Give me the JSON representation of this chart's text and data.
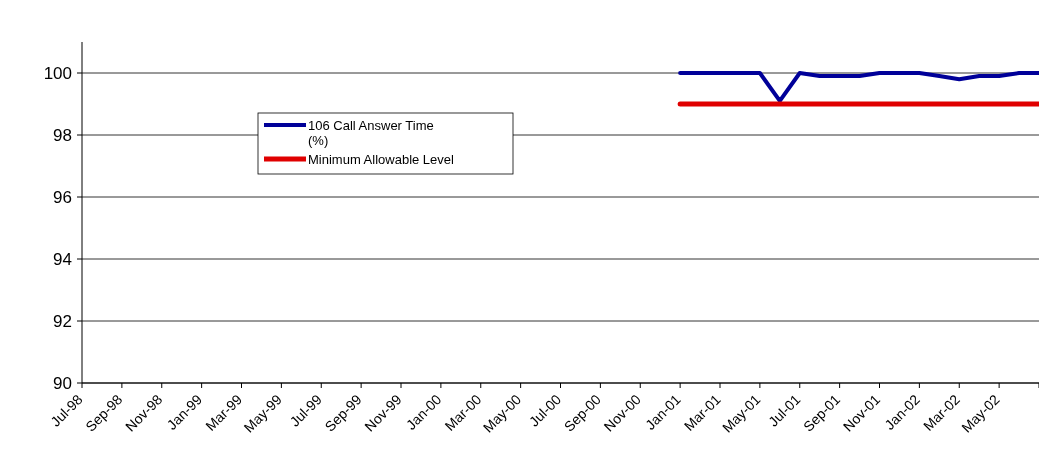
{
  "chart_data": {
    "type": "line",
    "categories": [
      "Jul-98",
      null,
      "Sep-98",
      null,
      "Nov-98",
      null,
      "Jan-99",
      null,
      "Mar-99",
      null,
      "May-99",
      null,
      "Jul-99",
      null,
      "Sep-99",
      null,
      "Nov-99",
      null,
      "Jan-00",
      null,
      "Mar-00",
      null,
      "May-00",
      null,
      "Jul-00",
      null,
      "Sep-00",
      null,
      "Nov-00",
      null,
      "Jan-01",
      null,
      "Mar-01",
      null,
      "May-01",
      null,
      "Jul-01",
      null,
      "Sep-01",
      null,
      "Nov-01",
      null,
      "Jan-02",
      null,
      "Mar-02",
      null,
      "May-02",
      null,
      null
    ],
    "series": [
      {
        "name": "106 Call Answer Time (%)",
        "color": "#000099",
        "values": [
          null,
          null,
          null,
          null,
          null,
          null,
          null,
          null,
          null,
          null,
          null,
          null,
          null,
          null,
          null,
          null,
          null,
          null,
          null,
          null,
          null,
          null,
          null,
          null,
          null,
          null,
          null,
          null,
          null,
          null,
          100,
          100,
          100,
          100,
          100,
          99.1,
          100,
          99.9,
          99.9,
          99.9,
          100,
          100,
          100,
          99.9,
          99.8,
          99.9,
          99.9,
          100,
          100
        ]
      },
      {
        "name": "Minimum Allowable Level",
        "color": "#e00000",
        "values": [
          null,
          null,
          null,
          null,
          null,
          null,
          null,
          null,
          null,
          null,
          null,
          null,
          null,
          null,
          null,
          null,
          null,
          null,
          null,
          null,
          null,
          null,
          null,
          null,
          null,
          null,
          null,
          null,
          null,
          null,
          99,
          99,
          99,
          99,
          99,
          99,
          99,
          99,
          99,
          99,
          99,
          99,
          99,
          99,
          99,
          99,
          99,
          99,
          99
        ]
      }
    ],
    "ylim": [
      90,
      101
    ],
    "yticks": [
      90,
      92,
      94,
      96,
      98,
      100
    ],
    "grid": "y",
    "legend": "top left",
    "marker": "none",
    "line_style": "solid"
  }
}
